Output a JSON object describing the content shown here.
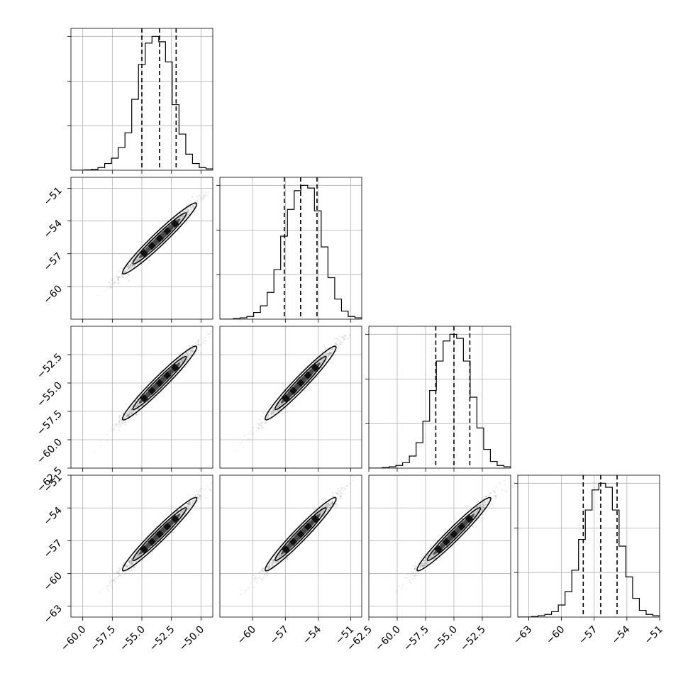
{
  "chart_data": {
    "type": "corner",
    "n_params": 4,
    "grid": true,
    "params": [
      {
        "index": 0,
        "range": [
          -61.0,
          -49.0
        ],
        "ticks": [
          -60.0,
          -57.5,
          -55.0,
          -52.5,
          -50.0
        ],
        "tick_labels": [
          "−60.0",
          "−57.5",
          "−55.0",
          "−52.5",
          "−50.0"
        ],
        "quantiles": [
          -55.0,
          -53.5,
          -52.1
        ]
      },
      {
        "index": 1,
        "range": [
          -63.0,
          -50.0
        ],
        "ticks": [
          -60,
          -57,
          -54,
          -51
        ],
        "tick_labels": [
          "−60",
          "−57",
          "−54",
          "−51"
        ],
        "quantiles": [
          -57.1,
          -55.6,
          -54.1
        ]
      },
      {
        "index": 2,
        "range": [
          -62.5,
          -50.0
        ],
        "ticks": [
          -62.5,
          -60.0,
          -57.5,
          -55.0,
          -52.5
        ],
        "tick_labels": [
          "−62.5",
          "−60.0",
          "−57.5",
          "−55.0",
          "−52.5"
        ],
        "quantiles": [
          -56.6,
          -55.0,
          -53.6
        ]
      },
      {
        "index": 3,
        "range": [
          -64.0,
          -51.0
        ],
        "ticks": [
          -63,
          -60,
          -57,
          -54,
          -51
        ],
        "tick_labels": [
          "−63",
          "−60",
          "−57",
          "−54",
          "−51"
        ],
        "quantiles": [
          -58.0,
          -56.4,
          -54.9
        ]
      }
    ],
    "histograms": [
      {
        "param": 0,
        "counts": [
          0,
          0,
          0.3,
          0.6,
          2,
          5,
          9,
          17,
          28,
          53,
          79,
          95,
          100,
          96,
          81,
          49,
          27,
          12,
          5,
          2,
          1
        ]
      },
      {
        "param": 1,
        "counts": [
          0,
          0,
          0.5,
          1,
          2,
          5,
          10,
          20,
          37,
          62,
          82,
          96,
          100,
          98,
          81,
          54,
          31,
          15,
          6,
          2,
          1
        ]
      },
      {
        "param": 2,
        "counts": [
          0,
          0,
          0.4,
          1,
          2,
          4,
          9,
          19,
          35,
          58,
          80,
          95,
          100,
          97,
          80,
          53,
          30,
          14,
          5,
          2,
          1
        ]
      },
      {
        "param": 3,
        "counts": [
          0,
          0,
          0.4,
          1,
          2,
          4,
          9,
          19,
          35,
          58,
          80,
          95,
          100,
          97,
          80,
          53,
          30,
          14,
          5,
          2,
          1
        ]
      }
    ]
  }
}
